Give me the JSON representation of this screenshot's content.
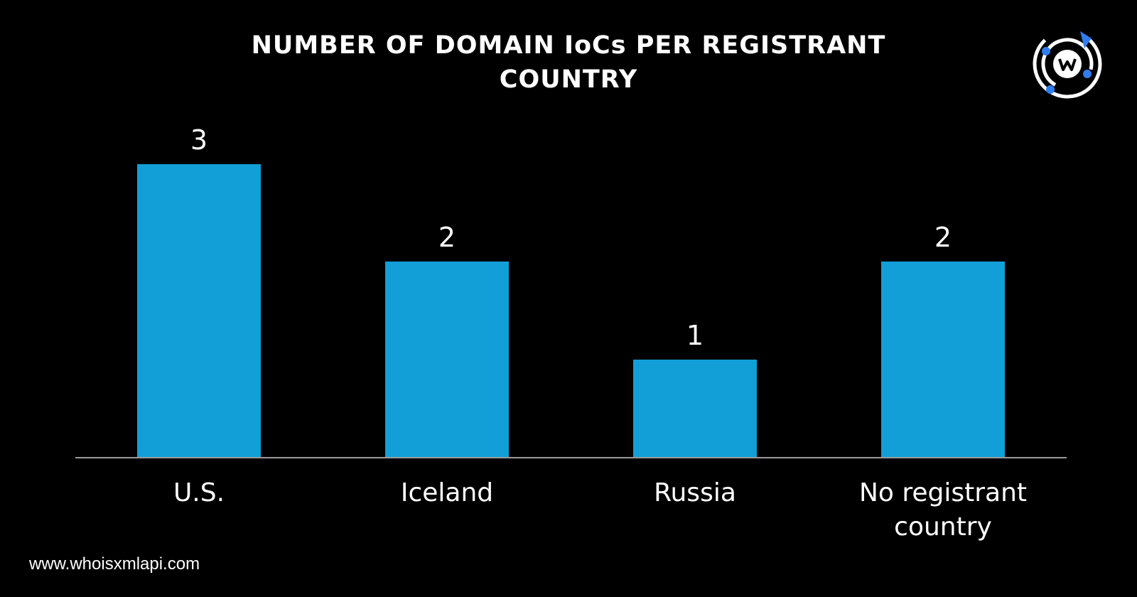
{
  "chart_data": {
    "type": "bar",
    "title": "NUMBER OF DOMAIN IoCs PER REGISTRANT COUNTRY",
    "categories": [
      "U.S.",
      "Iceland",
      "Russia",
      "No registrant country"
    ],
    "values": [
      3,
      2,
      1,
      2
    ],
    "color": "#129fd8"
  },
  "footer": {
    "url": "www.whoisxmlapi.com"
  }
}
